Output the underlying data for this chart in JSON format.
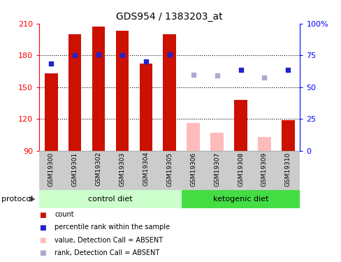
{
  "title": "GDS954 / 1383203_at",
  "samples": [
    "GSM19300",
    "GSM19301",
    "GSM19302",
    "GSM19303",
    "GSM19304",
    "GSM19305",
    "GSM19306",
    "GSM19307",
    "GSM19308",
    "GSM19309",
    "GSM19310"
  ],
  "bar_values": [
    163,
    200,
    207,
    203,
    172,
    200,
    null,
    null,
    138,
    null,
    119
  ],
  "bar_absent_values": [
    null,
    null,
    null,
    null,
    null,
    null,
    116,
    107,
    null,
    103,
    null
  ],
  "rank_values": [
    172,
    180,
    181,
    180,
    174,
    181,
    null,
    null,
    166,
    null,
    166
  ],
  "rank_absent_values": [
    null,
    null,
    null,
    null,
    null,
    null,
    162,
    161,
    null,
    159,
    null
  ],
  "bar_color": "#cc1100",
  "bar_absent_color": "#ffbbbb",
  "rank_color": "#2222cc",
  "rank_absent_color": "#aaaacc",
  "ylim_left": [
    90,
    210
  ],
  "y_left_ticks": [
    90,
    120,
    150,
    180,
    210
  ],
  "y_right_ticks": [
    0,
    25,
    50,
    75,
    100
  ],
  "grid_lines": [
    120,
    150,
    180
  ],
  "control_color": "#ccffcc",
  "ketogenic_color": "#44dd44",
  "xtick_bg_color": "#cccccc",
  "plot_bg": "#ffffff",
  "protocol_label": "protocol",
  "legend_items": [
    {
      "label": "count",
      "color": "#cc1100"
    },
    {
      "label": "percentile rank within the sample",
      "color": "#2222cc"
    },
    {
      "label": "value, Detection Call = ABSENT",
      "color": "#ffbbbb"
    },
    {
      "label": "rank, Detection Call = ABSENT",
      "color": "#aaaacc"
    }
  ]
}
